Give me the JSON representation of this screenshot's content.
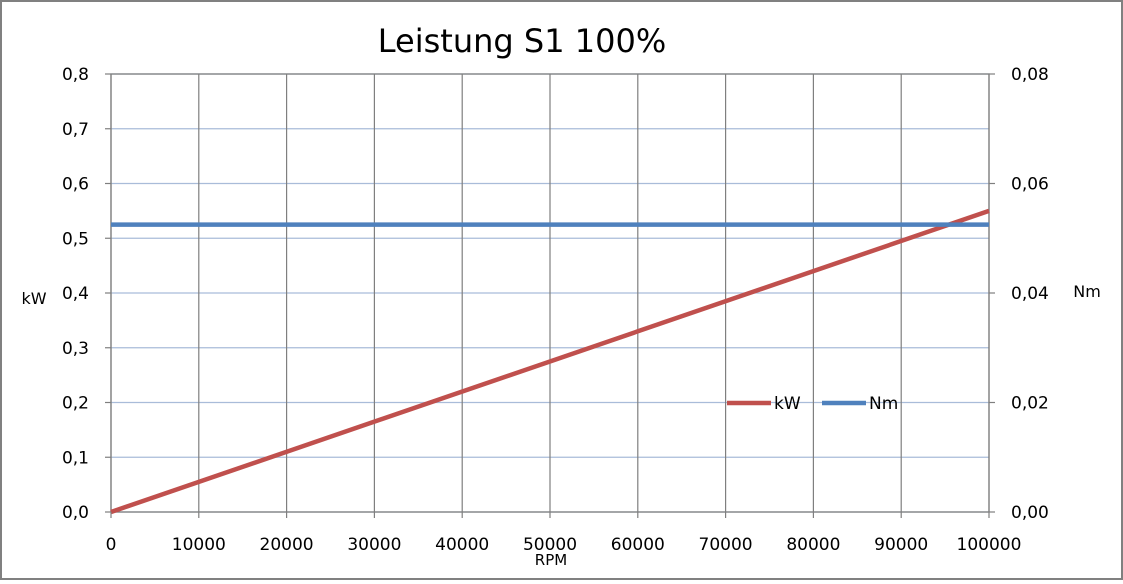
{
  "chart_data": {
    "type": "line",
    "title": "Leistung S1 100%",
    "xlabel": "RPM",
    "ylabel": "kW",
    "y2label": "Nm",
    "xlim": [
      0,
      100000
    ],
    "ylim": [
      0,
      0.8
    ],
    "y2lim": [
      0,
      0.08
    ],
    "x_ticks": [
      "0",
      "10000",
      "20000",
      "30000",
      "40000",
      "50000",
      "60000",
      "70000",
      "80000",
      "90000",
      "100000"
    ],
    "y_ticks": [
      "0,0",
      "0,1",
      "0,2",
      "0,3",
      "0,4",
      "0,5",
      "0,6",
      "0,7",
      "0,8"
    ],
    "y2_ticks": [
      "0,00",
      "0,02",
      "0,04",
      "0,06",
      "0,08"
    ],
    "grid": true,
    "legend_position": "right-middle",
    "series": [
      {
        "name": "kW",
        "axis": "left",
        "color": "#c0504d",
        "x": [
          0,
          100000
        ],
        "values": [
          0,
          0.55
        ]
      },
      {
        "name": "Nm",
        "axis": "right",
        "color": "#4f81bd",
        "x": [
          0,
          100000
        ],
        "values": [
          0.0525,
          0.0525
        ]
      }
    ]
  }
}
